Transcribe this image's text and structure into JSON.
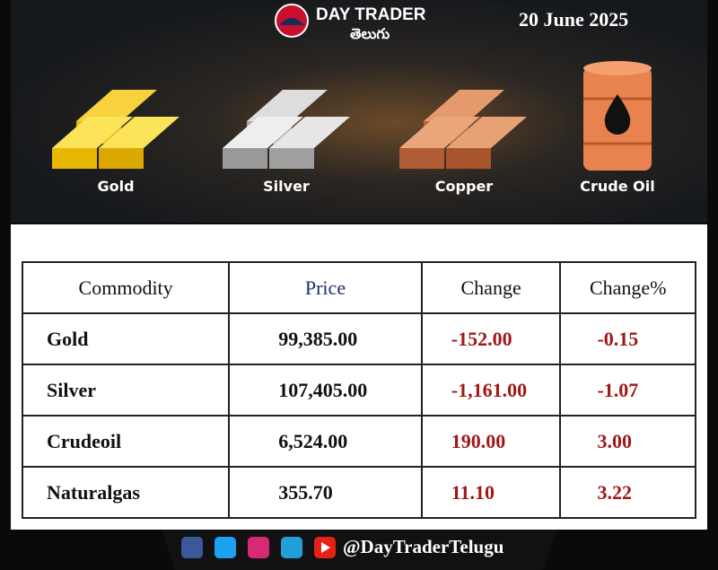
{
  "header": {
    "brand": "DAY TRADER",
    "subbrand": "తెలుగు",
    "date": "20 June 2025"
  },
  "commodities": [
    "Gold",
    "Silver",
    "Copper",
    "Crude Oil"
  ],
  "table": {
    "headers": [
      "Commodity",
      "Price",
      "Change",
      "Change%"
    ],
    "rows": [
      [
        "Gold",
        "99,385.00",
        "-152.00",
        "-0.15"
      ],
      [
        "Silver",
        "107,405.00",
        "-1,161.00",
        "-1.07"
      ],
      [
        "Crudeoil",
        "6,524.00",
        "190.00",
        "3.00"
      ],
      [
        "Naturalgas",
        "355.70",
        "11.10",
        "3.22"
      ]
    ]
  },
  "footer": {
    "handle": "@DayTraderTelugu"
  }
}
